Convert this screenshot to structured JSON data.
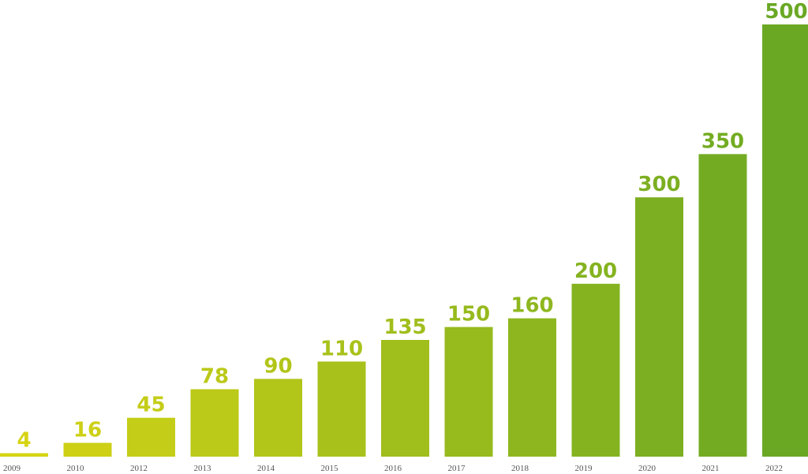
{
  "chart_data": {
    "type": "bar",
    "title": "",
    "xlabel": "",
    "ylabel": "",
    "categories": [
      "2009",
      "2010",
      "2012",
      "2013",
      "2014",
      "2015",
      "2016",
      "2017",
      "2018",
      "2019",
      "2020",
      "2021",
      "2022"
    ],
    "values": [
      4,
      16,
      45,
      78,
      90,
      110,
      135,
      150,
      160,
      200,
      300,
      350,
      500
    ],
    "ylim": [
      0,
      500
    ],
    "grid": false,
    "legend": "none",
    "colors": {
      "start": "#d6d414",
      "end": "#6aa824",
      "tick_label": "#555555"
    }
  }
}
